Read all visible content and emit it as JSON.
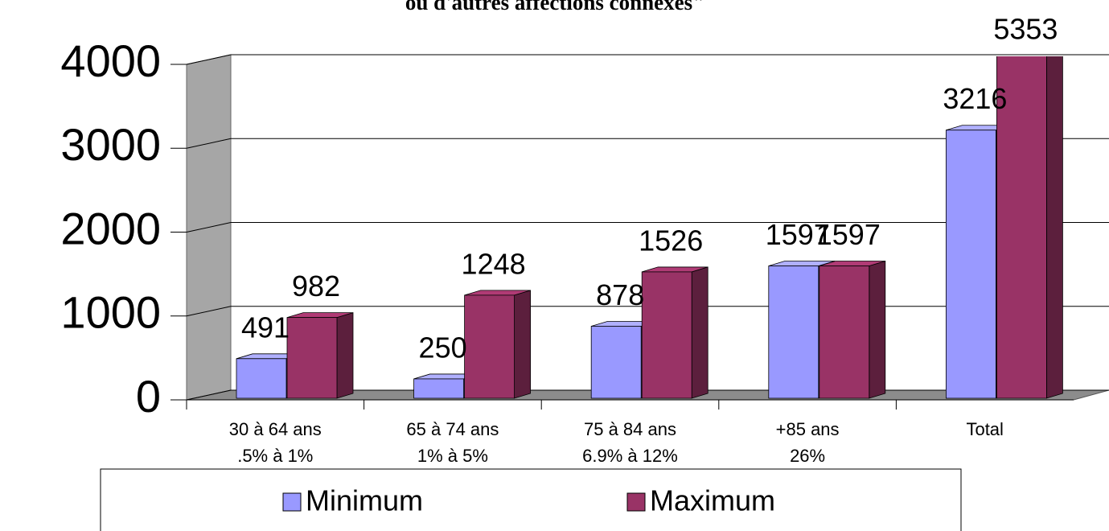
{
  "chart_data": {
    "type": "bar3d",
    "title": "ou d'autres affections connexes\"",
    "categories": [
      [
        "30 à 64 ans",
        ".5% à 1%"
      ],
      [
        "65 à 74 ans",
        "1% à 5%"
      ],
      [
        "75 à 84 ans",
        "6.9% à 12%"
      ],
      [
        "+85 ans",
        "26%"
      ],
      [
        "Total"
      ]
    ],
    "series": [
      {
        "name": "Minimum",
        "color": "#9999ff",
        "values": [
          491,
          250,
          878,
          1597,
          3216
        ]
      },
      {
        "name": "Maximum",
        "color": "#993366",
        "values": [
          982,
          1248,
          1526,
          1597,
          5353
        ]
      }
    ],
    "ylim": [
      0,
      4000
    ],
    "yticks": [
      0,
      1000,
      2000,
      3000,
      4000
    ],
    "grid": true,
    "legend": "bottom"
  }
}
